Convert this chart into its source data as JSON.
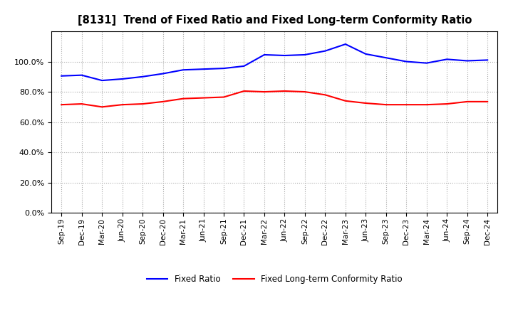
{
  "title": "[8131]  Trend of Fixed Ratio and Fixed Long-term Conformity Ratio",
  "x_labels": [
    "Sep-19",
    "Dec-19",
    "Mar-20",
    "Jun-20",
    "Sep-20",
    "Dec-20",
    "Mar-21",
    "Jun-21",
    "Sep-21",
    "Dec-21",
    "Mar-22",
    "Jun-22",
    "Sep-22",
    "Dec-22",
    "Mar-23",
    "Jun-23",
    "Sep-23",
    "Dec-23",
    "Mar-24",
    "Jun-24",
    "Sep-24",
    "Dec-24"
  ],
  "fixed_ratio": [
    90.5,
    91.0,
    87.5,
    88.5,
    90.0,
    92.0,
    94.5,
    95.0,
    95.5,
    97.0,
    104.5,
    104.0,
    104.5,
    107.0,
    111.5,
    105.0,
    102.5,
    100.0,
    99.0,
    101.5,
    100.5,
    101.0
  ],
  "fixed_lt_ratio": [
    71.5,
    72.0,
    70.0,
    71.5,
    72.0,
    73.5,
    75.5,
    76.0,
    76.5,
    80.5,
    80.0,
    80.5,
    80.0,
    78.0,
    74.0,
    72.5,
    71.5,
    71.5,
    71.5,
    72.0,
    73.5,
    73.5
  ],
  "fixed_ratio_color": "#0000FF",
  "fixed_lt_ratio_color": "#FF0000",
  "ylim": [
    0,
    120
  ],
  "yticks": [
    0.0,
    20.0,
    40.0,
    60.0,
    80.0,
    100.0
  ],
  "background_color": "#FFFFFF",
  "plot_bg_color": "#FFFFFF",
  "grid_color": "#AAAAAA",
  "legend_fixed_ratio": "Fixed Ratio",
  "legend_fixed_lt_ratio": "Fixed Long-term Conformity Ratio"
}
